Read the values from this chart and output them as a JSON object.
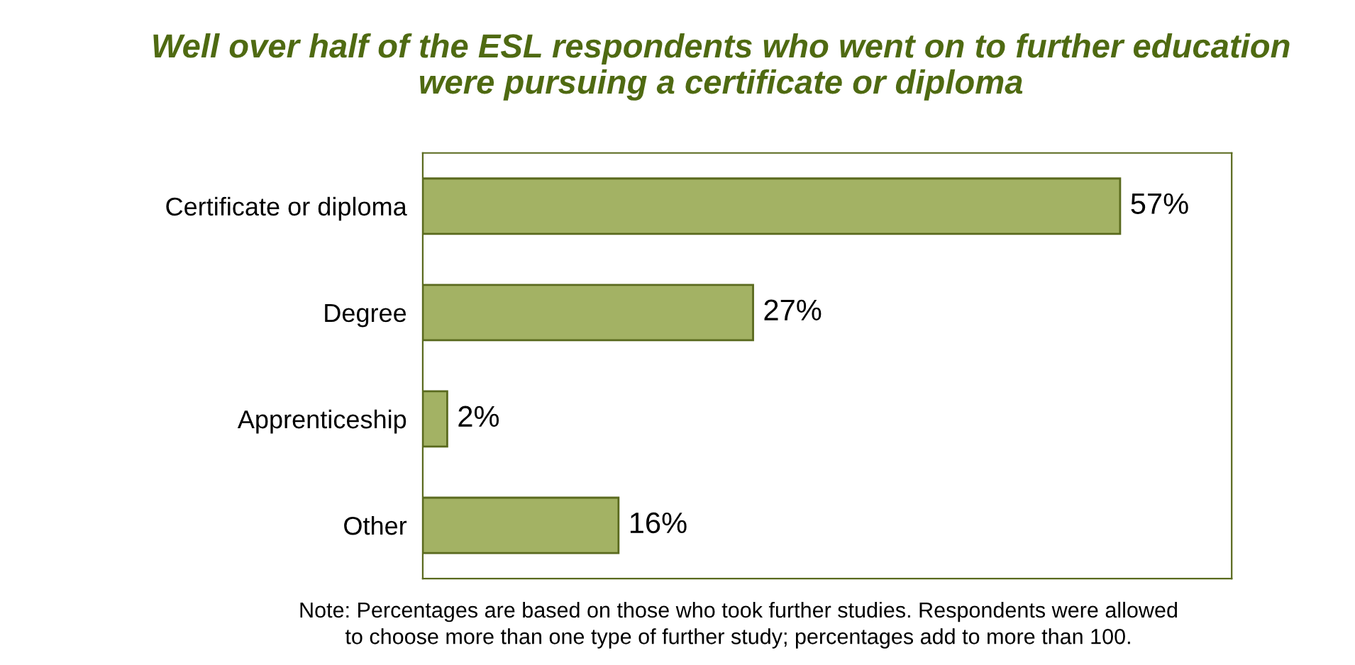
{
  "chart_data": {
    "type": "bar",
    "orientation": "horizontal",
    "title": "Well over half of the ESL respondents who went on to further education\nwere pursuing a certificate or diploma",
    "categories": [
      "Certificate or diploma",
      "Degree",
      "Apprenticeship",
      "Other"
    ],
    "values": [
      57,
      27,
      2,
      16
    ],
    "color": "#a3b264",
    "value_labels": [
      "57%",
      "27%",
      "2%",
      "16%"
    ],
    "annotations": [
      "Note: Percentages are based on those who took further studies. Respondents were allowed\nto choose more than one type of further study; percentages add to more than 100."
    ],
    "grid": false,
    "legend": false
  }
}
